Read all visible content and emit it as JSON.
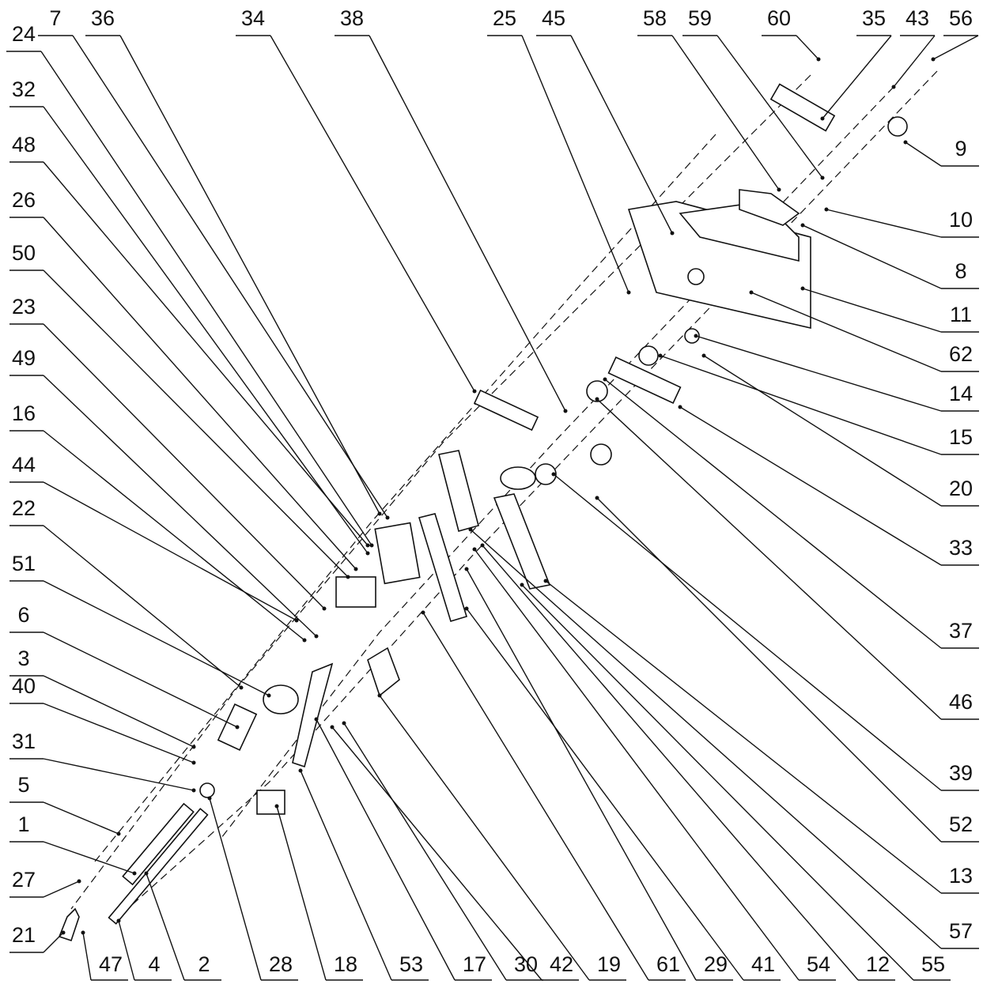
{
  "drawing": {
    "top_labels": [
      "24",
      "7",
      "36",
      "34",
      "38",
      "25",
      "45",
      "58",
      "59",
      "60",
      "35",
      "43",
      "56"
    ],
    "left_labels": [
      "32",
      "48",
      "26",
      "50",
      "23",
      "49",
      "16",
      "44",
      "22",
      "51",
      "6",
      "3",
      "40",
      "31",
      "5",
      "1",
      "27",
      "21"
    ],
    "right_labels": [
      "9",
      "10",
      "8",
      "11",
      "62",
      "14",
      "15",
      "20",
      "33",
      "37",
      "46",
      "39",
      "52",
      "13",
      "57"
    ],
    "bottom_labels": [
      "47",
      "4",
      "2",
      "28",
      "18",
      "53",
      "17",
      "30",
      "42",
      "19",
      "61",
      "29",
      "41",
      "54",
      "12",
      "55"
    ]
  }
}
